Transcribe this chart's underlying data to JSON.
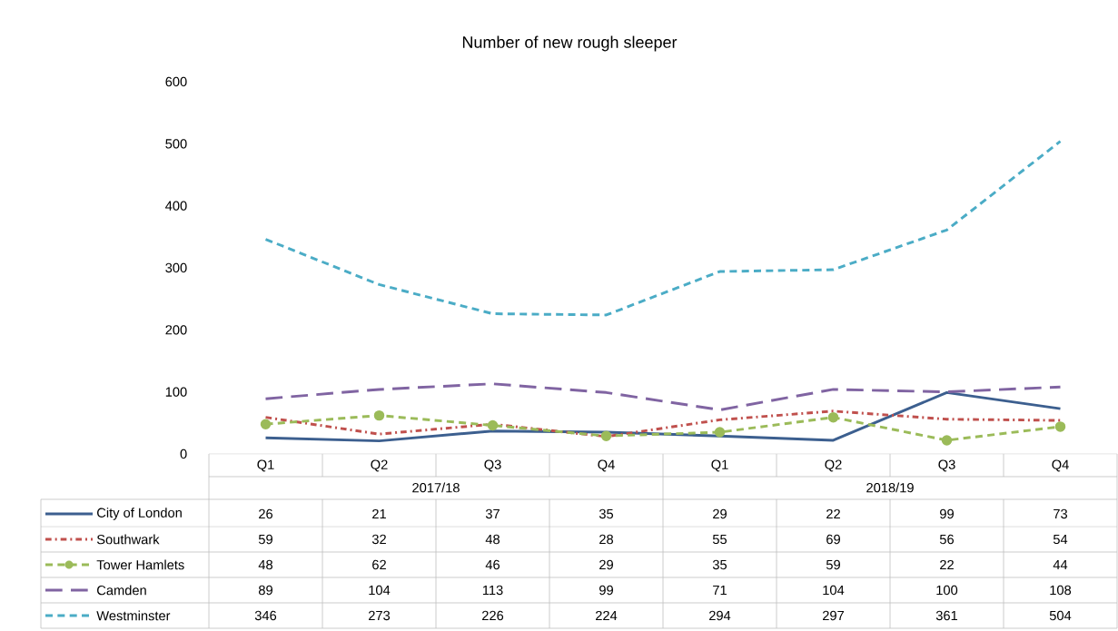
{
  "chart_data": {
    "type": "line",
    "title": "Number of new rough sleeper",
    "categories": [
      "Q1",
      "Q2",
      "Q3",
      "Q4",
      "Q1",
      "Q2",
      "Q3",
      "Q4"
    ],
    "annotations": [
      "2017/18",
      "2018/19"
    ],
    "series": [
      {
        "name": "City of London",
        "color": "#3c5f8f",
        "line_style": "solid",
        "marker": "none",
        "values": [
          26,
          21,
          37,
          35,
          29,
          22,
          99,
          73
        ]
      },
      {
        "name": "Southwark",
        "color": "#c0504d",
        "line_style": "dashdot",
        "marker": "none",
        "values": [
          59,
          32,
          48,
          28,
          55,
          69,
          56,
          54
        ]
      },
      {
        "name": "Tower Hamlets",
        "color": "#9bbb59",
        "line_style": "dashed",
        "marker": "circle",
        "values": [
          48,
          62,
          46,
          29,
          35,
          59,
          22,
          44
        ]
      },
      {
        "name": "Camden",
        "color": "#8064a2",
        "line_style": "longdashed",
        "marker": "none",
        "values": [
          89,
          104,
          113,
          99,
          71,
          104,
          100,
          108
        ]
      },
      {
        "name": "Westminster",
        "color": "#4bacc6",
        "line_style": "dashed",
        "marker": "none",
        "values": [
          346,
          273,
          226,
          224,
          294,
          297,
          361,
          504
        ]
      }
    ],
    "ylim": [
      0,
      600
    ],
    "yticks": [
      0,
      100,
      200,
      300,
      400,
      500,
      600
    ],
    "grid": false,
    "legend": "bottom",
    "data_labels": true
  }
}
